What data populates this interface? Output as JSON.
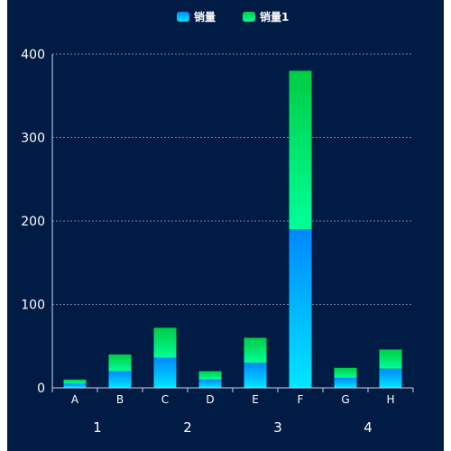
{
  "chart_data": {
    "type": "bar",
    "stacked": true,
    "title": "",
    "xlabel": "",
    "ylabel": "",
    "ylim": [
      0,
      400
    ],
    "yticks": [
      0,
      100,
      200,
      300,
      400
    ],
    "grid": true,
    "legend_position": "top-center",
    "categories": [
      "A",
      "B",
      "C",
      "D",
      "E",
      "F",
      "G",
      "H"
    ],
    "groups": [
      "1",
      "2",
      "3",
      "4"
    ],
    "series": [
      {
        "name": "销量",
        "values": [
          5,
          20,
          36,
          10,
          30,
          190,
          12,
          23
        ],
        "color_top": "#0088ff",
        "color_bottom": "#00e6ff"
      },
      {
        "name": "销量1",
        "values": [
          5,
          20,
          36,
          10,
          30,
          190,
          12,
          23
        ],
        "color_top": "#00cc44",
        "color_bottom": "#00ff99"
      }
    ]
  },
  "colors": {
    "background": "#001c44",
    "axis": "#c9d3e3",
    "grid": "#8fa0bd",
    "text": "#ffffff"
  }
}
